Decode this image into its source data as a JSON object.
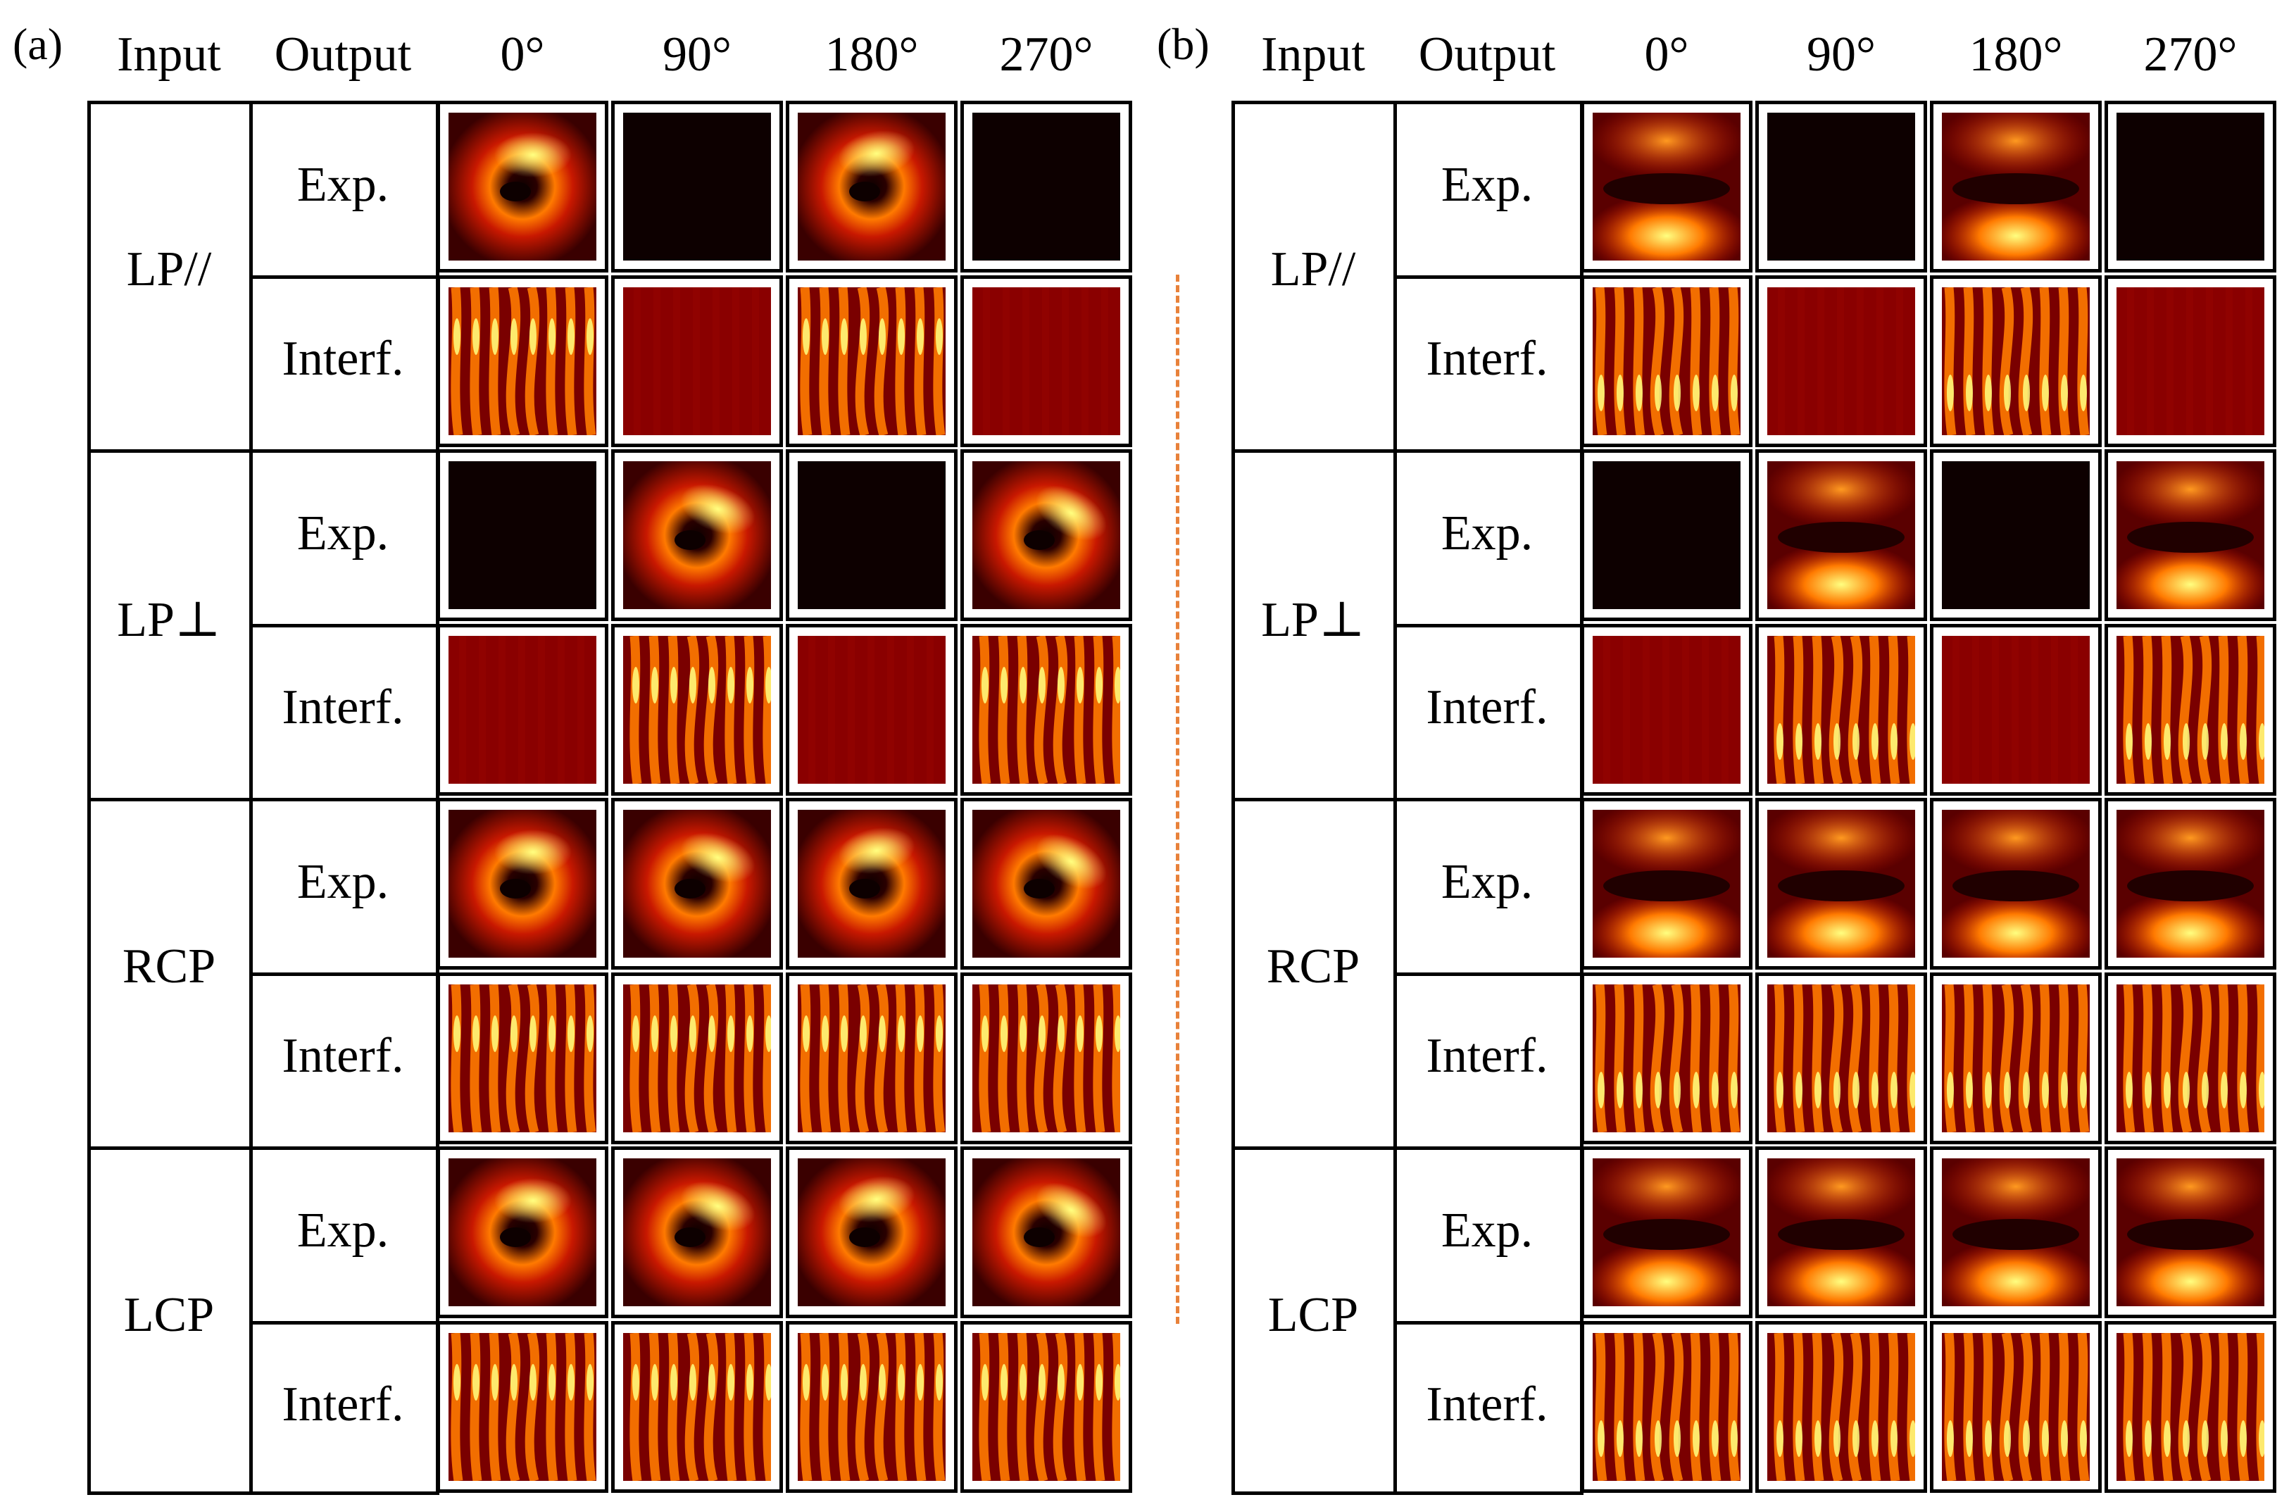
{
  "panels": [
    {
      "label": "(a)",
      "headers": [
        "Input",
        "Output",
        "0°",
        "90°",
        "180°",
        "270°"
      ],
      "inputs": [
        "LP//",
        "LP⊥",
        "RCP",
        "LCP"
      ],
      "outputs": [
        "Exp.",
        "Interf."
      ],
      "kind": "vortex"
    },
    {
      "label": "(b)",
      "headers": [
        "Input",
        "Output",
        "0°",
        "90°",
        "180°",
        "270°"
      ],
      "inputs": [
        "LP//",
        "LP⊥",
        "RCP",
        "LCP"
      ],
      "outputs": [
        "Exp.",
        "Interf."
      ],
      "kind": "hermite"
    }
  ],
  "colors": {
    "dark": "#0d0000",
    "mid": "#a00000",
    "bright": "#ff7a00",
    "peak": "#ffff80",
    "divider": "#e8813a"
  }
}
